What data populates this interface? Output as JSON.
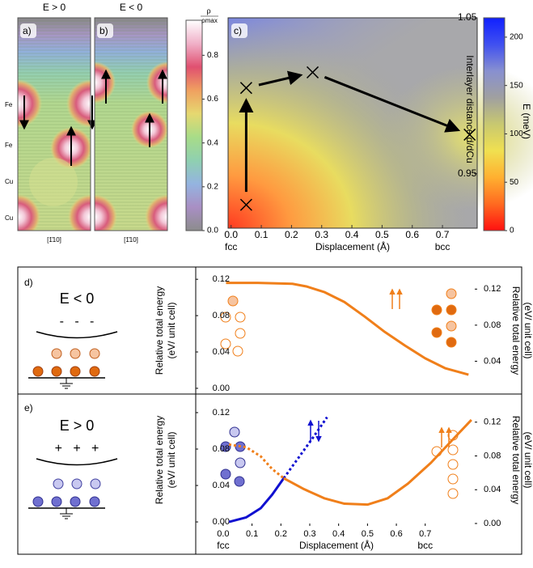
{
  "density_maps": {
    "panels": [
      {
        "label": "a)",
        "title": "E > 0",
        "direction": "[1̄10]"
      },
      {
        "label": "b)",
        "title": "E < 0",
        "direction": "[1̄10]"
      }
    ],
    "layers": [
      "Fe",
      "Fe",
      "Cu",
      "Cu"
    ]
  },
  "schematics": [
    {
      "label": "d)",
      "field": "E < 0",
      "charges": "-   -   -"
    },
    {
      "label": "e)",
      "field": "E > 0",
      "charges": "+   +   +"
    }
  ],
  "chart_data": [
    {
      "type": "scatter",
      "panel_label": "c)",
      "x_label": "Displacement (Å)",
      "y_label": "Interlayer distance d/dCu",
      "x": [
        0.05,
        0.05,
        0.27,
        0.79
      ],
      "values": [
        0.93,
        1.005,
        1.015,
        0.975
      ],
      "xlim": [
        -0.01,
        0.815
      ],
      "xticks": [
        {
          "value": 0,
          "label": "0.0"
        },
        0.1,
        0.2,
        0.3,
        0.4,
        0.5,
        0.6,
        0.7
      ],
      "ylim": [
        0.915,
        1.05
      ],
      "yticks": [
        0.95,
        1.05
      ],
      "x_annotations": [
        {
          "value": 0,
          "label": "fcc"
        },
        {
          "value": 0.7,
          "label": "bcc"
        }
      ]
    },
    {
      "type": "colorbar",
      "label": "ρ",
      "label_denominator": "ρmax",
      "ylim": [
        0,
        0.96
      ],
      "yticks": [
        {
          "value": 0,
          "label": "0.0"
        },
        0.2,
        0.4,
        0.6,
        0.8
      ],
      "colors": [
        "#8c8c8c",
        "#a98fc4",
        "#94b4e0",
        "#8fd0b0",
        "#a8dc88",
        "#e6d870",
        "#f0a060",
        "#e05070",
        "#f0b0c8",
        "#ffffff"
      ]
    },
    {
      "type": "colorbar",
      "label": "E (meV)",
      "ylim": [
        0,
        220
      ],
      "yticks": [
        0,
        50,
        100,
        150,
        200
      ],
      "colors": [
        "#ff1010",
        "#ff6a20",
        "#ffb030",
        "#f0e050",
        "#c8c870",
        "#a0a0a0",
        "#8890d0",
        "#4050f0",
        "#1020ff"
      ]
    },
    {
      "type": "line",
      "panel_label": "d)",
      "y_label": "Relative total energy",
      "y_label_unit": "(eV/ unit cell)",
      "xlim": [
        -0.095,
        0.88
      ],
      "ylim": [
        -0.0063,
        0.1335
      ],
      "yticks": [
        {
          "value": 0,
          "label": "0.00"
        },
        {
          "value": 0.04,
          "label": "0.04"
        },
        {
          "value": 0.08,
          "label": "0.08"
        },
        {
          "value": 0.12,
          "label": "0.12"
        }
      ],
      "y2lim": [
        0.0036,
        0.1445
      ],
      "y2ticks": [
        {
          "value": 0.04,
          "label": "0.04"
        },
        {
          "value": 0.08,
          "label": "0.08"
        },
        {
          "value": 0.12,
          "label": "0.12"
        }
      ],
      "series": [
        {
          "color": "#f07f1a",
          "style": "solid",
          "x": [
            0.01,
            0.12,
            0.24,
            0.29,
            0.35,
            0.42,
            0.49,
            0.56,
            0.63,
            0.7,
            0.77,
            0.85
          ],
          "values": [
            0.116,
            0.116,
            0.115,
            0.112,
            0.106,
            0.095,
            0.079,
            0.062,
            0.047,
            0.033,
            0.022,
            0.015
          ]
        }
      ]
    },
    {
      "type": "line",
      "panel_label": "e)",
      "y_label": "Relative total energy",
      "y_label_unit": "(eV/ unit cell)",
      "x_label": "Displacement (Å)",
      "xlim": [
        -0.095,
        0.88
      ],
      "xticks": [
        {
          "value": 0,
          "label": "0.0"
        },
        0.1,
        0.2,
        0.3,
        0.4,
        0.5,
        0.6,
        0.7
      ],
      "x_annotations": [
        {
          "value": 0,
          "label": "fcc"
        },
        {
          "value": 0.7,
          "label": "bcc"
        }
      ],
      "ylim": [
        -0.0044,
        0.1404
      ],
      "yticks": [
        {
          "value": 0,
          "label": "0.00"
        },
        {
          "value": 0.04,
          "label": "0.04"
        },
        {
          "value": 0.08,
          "label": "0.08"
        },
        {
          "value": 0.12,
          "label": "0.12"
        }
      ],
      "y2lim": [
        -0.0029,
        0.1533
      ],
      "y2ticks": [
        {
          "value": 0,
          "label": "0.00"
        },
        {
          "value": 0.04,
          "label": "0.04"
        },
        {
          "value": 0.08,
          "label": "0.08"
        },
        {
          "value": 0.12,
          "label": "0.12"
        }
      ],
      "series": [
        {
          "color": "#1010d0",
          "style": "solid",
          "x": [
            0.02,
            0.08,
            0.13,
            0.17,
            0.21
          ],
          "values": [
            0.0,
            0.005,
            0.015,
            0.03,
            0.048
          ]
        },
        {
          "color": "#1010d0",
          "style": "dotted",
          "x": [
            0.21,
            0.26,
            0.31,
            0.36
          ],
          "values": [
            0.048,
            0.07,
            0.092,
            0.115
          ]
        },
        {
          "color": "#f07f1a",
          "style": "dotted",
          "x": [
            0.02,
            0.08,
            0.13,
            0.17,
            0.21
          ],
          "values": [
            0.085,
            0.082,
            0.072,
            0.058,
            0.048
          ]
        },
        {
          "color": "#f07f1a",
          "style": "solid",
          "x": [
            0.21,
            0.28,
            0.35,
            0.42,
            0.5,
            0.57,
            0.64,
            0.72,
            0.8,
            0.86
          ],
          "values": [
            0.048,
            0.036,
            0.026,
            0.02,
            0.019,
            0.026,
            0.042,
            0.065,
            0.092,
            0.112
          ]
        }
      ]
    }
  ]
}
